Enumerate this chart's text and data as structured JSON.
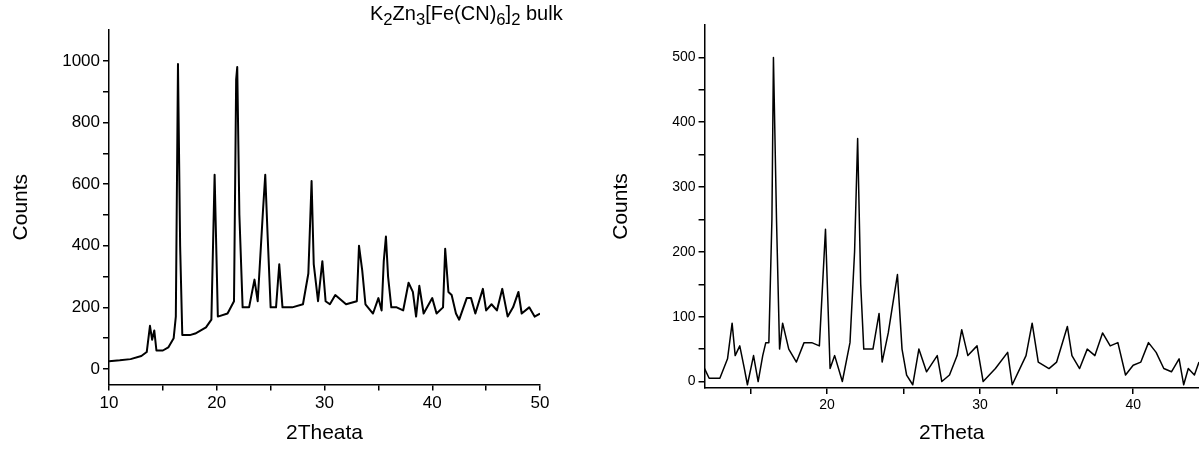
{
  "chart_data": [
    {
      "type": "line",
      "title": "K$_{2}$Zn$_{3}$[Fe(CN)$_{6}$]$_{2}$ bulk",
      "xlabel": "2Theata",
      "ylabel": "Counts",
      "xlim": [
        10,
        50
      ],
      "ylim": [
        -50,
        1100
      ],
      "xticks": [
        10,
        {
          "value": 15,
          "label": null
        },
        20,
        {
          "value": 25,
          "label": null
        },
        30,
        {
          "value": 35,
          "label": null
        },
        40,
        {
          "value": 45,
          "label": null
        },
        50
      ],
      "yticks": [
        0,
        {
          "value": 100,
          "label": null
        },
        200,
        {
          "value": 300,
          "label": null
        },
        400,
        {
          "value": 500,
          "label": null
        },
        600,
        {
          "value": 700,
          "label": null
        },
        800,
        {
          "value": 900,
          "label": null
        },
        1000
      ],
      "series": [
        {
          "color": "#000000",
          "x": [
            10,
            11,
            12,
            13,
            13.5,
            13.8,
            14,
            14.2,
            14.4,
            15,
            15.5,
            16,
            16.2,
            16.4,
            16.6,
            16.8,
            17.5,
            18,
            19,
            19.5,
            19.8,
            20.1,
            21,
            21.6,
            21.8,
            21.9,
            22.1,
            22.4,
            23,
            23.5,
            23.8,
            24.3,
            24.5,
            24.7,
            25,
            25.5,
            25.8,
            26.1,
            27,
            28,
            28.5,
            28.8,
            29,
            29.4,
            29.8,
            30.1,
            30.5,
            31,
            32,
            33,
            33.2,
            33.5,
            33.8,
            34.5,
            35,
            35.3,
            35.5,
            35.7,
            35.9,
            36.2,
            36.7,
            37.3,
            37.8,
            38.2,
            38.5,
            38.8,
            39.2,
            40,
            40.4,
            41,
            41.2,
            41.5,
            41.8,
            42.2,
            42.5,
            43.2,
            43.6,
            44,
            44.7,
            45,
            45.5,
            46,
            46.5,
            47,
            47.5,
            48,
            48.3,
            49,
            49.5,
            50
          ],
          "values": [
            25,
            28,
            32,
            42,
            55,
            140,
            95,
            125,
            60,
            60,
            70,
            100,
            170,
            990,
            400,
            110,
            110,
            115,
            135,
            160,
            630,
            170,
            180,
            220,
            940,
            980,
            500,
            200,
            200,
            290,
            220,
            520,
            630,
            450,
            200,
            200,
            340,
            200,
            200,
            210,
            310,
            610,
            340,
            220,
            350,
            220,
            210,
            240,
            210,
            220,
            400,
            320,
            210,
            180,
            230,
            190,
            350,
            430,
            300,
            200,
            200,
            190,
            280,
            250,
            170,
            270,
            180,
            230,
            180,
            200,
            390,
            250,
            240,
            180,
            160,
            230,
            230,
            180,
            260,
            190,
            210,
            190,
            260,
            170,
            200,
            250,
            180,
            200,
            170,
            180
          ]
        }
      ]
    },
    {
      "type": "line",
      "xlabel": "2Theta",
      "ylabel": "Counts",
      "xlim": [
        12,
        44.3
      ],
      "ylim": [
        -10,
        550
      ],
      "xticks": [
        {
          "value": 15,
          "label": null
        },
        20,
        {
          "value": 25,
          "label": null
        },
        30,
        {
          "value": 35,
          "label": null
        },
        40
      ],
      "yticks": [
        0,
        {
          "value": 50,
          "label": null
        },
        100,
        {
          "value": 150,
          "label": null
        },
        200,
        {
          "value": 250,
          "label": null
        },
        300,
        {
          "value": 350,
          "label": null
        },
        400,
        {
          "value": 450,
          "label": null
        },
        500
      ],
      "series": [
        {
          "color": "#000000",
          "x": [
            12,
            12.3,
            13,
            13.5,
            13.8,
            14,
            14.3,
            14.6,
            14.8,
            15.2,
            15.5,
            15.8,
            16,
            16.2,
            16.4,
            16.5,
            16.7,
            16.9,
            17.1,
            17.5,
            18,
            18.5,
            19,
            19.5,
            19.9,
            20.2,
            20.5,
            21,
            21.5,
            21.8,
            22,
            22.2,
            22.4,
            23,
            23.4,
            23.6,
            24,
            24.3,
            24.6,
            24.9,
            25.2,
            25.6,
            26,
            26.5,
            27.2,
            27.5,
            28,
            28.5,
            28.8,
            29.2,
            29.8,
            30.2,
            31,
            31.8,
            32.1,
            33,
            33.4,
            33.8,
            34.5,
            35,
            35.7,
            36,
            36.5,
            37,
            37.5,
            38,
            38.5,
            39,
            39.5,
            40,
            40.5,
            41,
            41.5,
            42,
            42.5,
            43,
            43.3,
            43.6,
            44,
            44.3
          ],
          "values": [
            20,
            5,
            5,
            35,
            90,
            40,
            55,
            20,
            -5,
            40,
            0,
            40,
            60,
            60,
            250,
            500,
            250,
            50,
            90,
            50,
            30,
            60,
            60,
            55,
            235,
            20,
            40,
            0,
            60,
            200,
            375,
            150,
            50,
            50,
            105,
            30,
            75,
            120,
            165,
            50,
            10,
            -5,
            50,
            15,
            40,
            0,
            10,
            40,
            80,
            40,
            55,
            0,
            20,
            45,
            -5,
            40,
            90,
            30,
            20,
            30,
            85,
            40,
            20,
            50,
            40,
            75,
            55,
            60,
            10,
            25,
            30,
            60,
            45,
            20,
            15,
            35,
            -5,
            20,
            10,
            30
          ]
        }
      ]
    }
  ]
}
